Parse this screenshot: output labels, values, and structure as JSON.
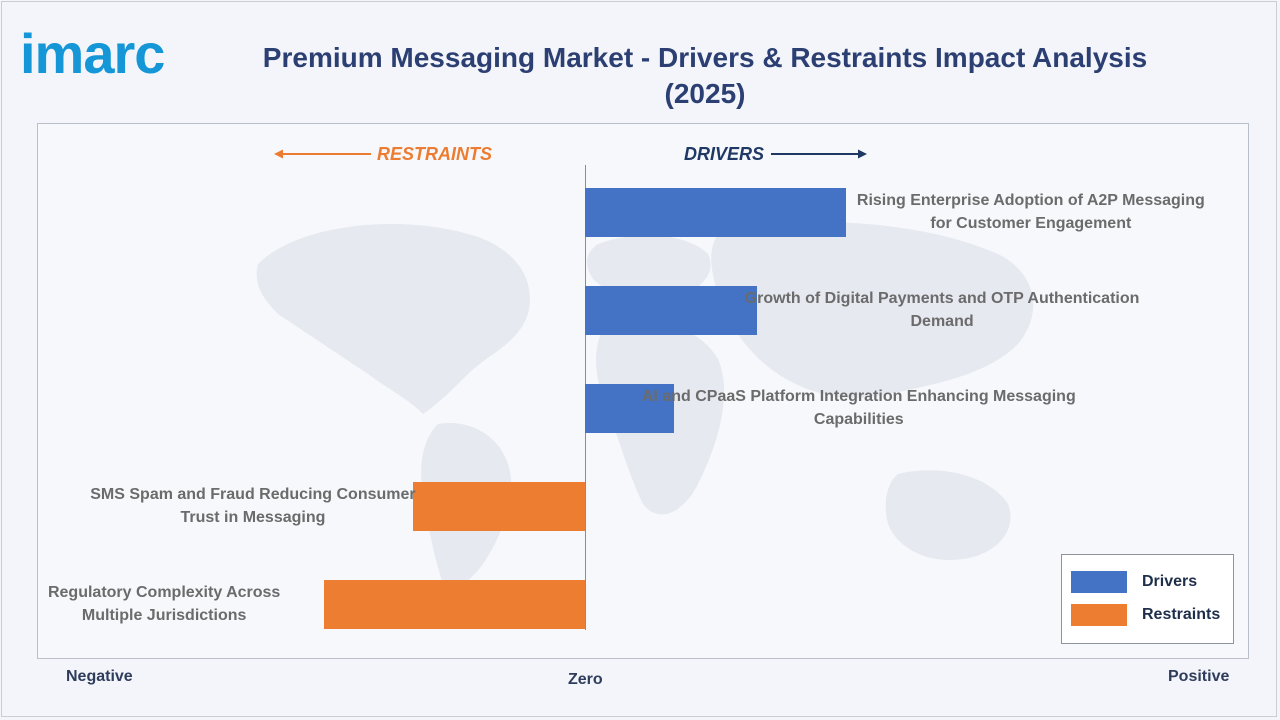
{
  "brand": {
    "logo_text": "imarc"
  },
  "chart_data": {
    "type": "bar",
    "orientation": "horizontal",
    "title": "Premium Messaging Market - Drivers & Restraints Impact Analysis (2025)",
    "direction_labels": {
      "left": "RESTRAINTS",
      "right": "DRIVERS"
    },
    "axis_labels": {
      "negative": "Negative",
      "zero": "Zero",
      "positive": "Positive"
    },
    "xlim": [
      -1,
      1
    ],
    "categories": [
      "Rising Enterprise Adoption of A2P Messaging for Customer Engagement",
      "Growth of Digital Payments and OTP Authentication Demand",
      "AI and CPaaS Platform Integration Enhancing Messaging Capabilities",
      "SMS Spam and Fraud Reducing Consumer Trust in Messaging",
      "Regulatory Complexity Across Multiple Jurisdictions"
    ],
    "series": [
      {
        "name": "Drivers",
        "color": "#4472c4",
        "values": [
          0.47,
          0.31,
          0.16,
          null,
          null
        ]
      },
      {
        "name": "Restraints",
        "color": "#ed7d31",
        "values": [
          null,
          null,
          null,
          -0.31,
          -0.47
        ]
      }
    ],
    "legend_position": "bottom-right",
    "grid": false
  },
  "labels": [
    {
      "lines": [
        "Rising Enterprise Adoption of A2P Messaging",
        "for Customer Engagement"
      ]
    },
    {
      "lines": [
        "Growth of Digital Payments and OTP Authentication",
        "Demand"
      ]
    },
    {
      "lines": [
        "AI and CPaaS Platform Integration Enhancing Messaging",
        "Capabilities"
      ]
    },
    {
      "lines": [
        "SMS Spam and Fraud Reducing Consumer",
        "Trust in Messaging"
      ]
    },
    {
      "lines": [
        "Regulatory Complexity Across",
        "Multiple Jurisdictions"
      ]
    }
  ]
}
